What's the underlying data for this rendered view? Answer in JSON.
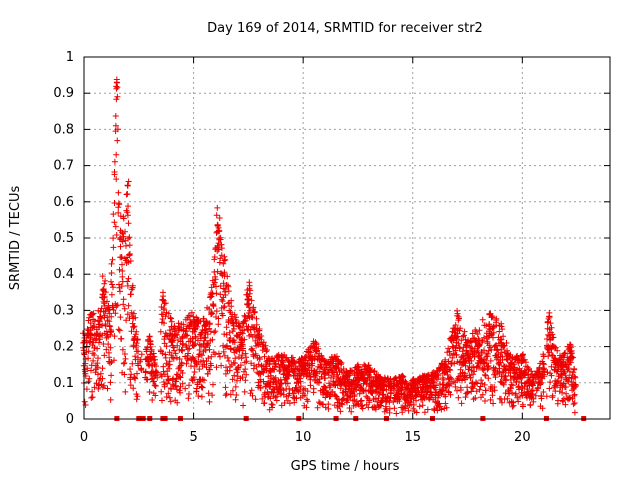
{
  "chart_data": {
    "type": "scatter",
    "title": "Day 169 of 2014, SRMTID for receiver str2",
    "xlabel": "GPS time / hours",
    "ylabel": "SRMTID / TECUs",
    "xlim": [
      0,
      24
    ],
    "ylim": [
      0,
      1
    ],
    "x_ticks": [
      "0",
      "5",
      "10",
      "15",
      "20"
    ],
    "x_tick_values": [
      0,
      5,
      10,
      15,
      20
    ],
    "y_ticks": [
      "0",
      "0.1",
      "0.2",
      "0.3",
      "0.4",
      "0.5",
      "0.6",
      "0.7",
      "0.8",
      "0.9",
      "1"
    ],
    "y_tick_values": [
      0,
      0.1,
      0.2,
      0.3,
      0.4,
      0.5,
      0.6,
      0.7,
      0.8,
      0.9,
      1.0
    ],
    "grid": true,
    "marker": "+",
    "color": "#ee0000",
    "envelope": {
      "description": "approximate upper envelope of the SRMTID scatter (hours, TECU)",
      "points": [
        [
          0.0,
          0.24
        ],
        [
          0.3,
          0.29
        ],
        [
          0.7,
          0.3
        ],
        [
          0.9,
          0.42
        ],
        [
          1.2,
          0.3
        ],
        [
          1.5,
          0.96
        ],
        [
          1.7,
          0.53
        ],
        [
          2.0,
          0.66
        ],
        [
          2.3,
          0.28
        ],
        [
          2.6,
          0.18
        ],
        [
          3.0,
          0.23
        ],
        [
          3.3,
          0.15
        ],
        [
          3.6,
          0.35
        ],
        [
          4.0,
          0.27
        ],
        [
          4.5,
          0.27
        ],
        [
          5.0,
          0.3
        ],
        [
          5.5,
          0.28
        ],
        [
          5.8,
          0.35
        ],
        [
          6.1,
          0.62
        ],
        [
          6.4,
          0.45
        ],
        [
          6.8,
          0.3
        ],
        [
          7.2,
          0.25
        ],
        [
          7.5,
          0.39
        ],
        [
          8.0,
          0.25
        ],
        [
          8.5,
          0.17
        ],
        [
          9.0,
          0.18
        ],
        [
          9.5,
          0.17
        ],
        [
          10.0,
          0.17
        ],
        [
          10.5,
          0.22
        ],
        [
          11.0,
          0.16
        ],
        [
          11.5,
          0.18
        ],
        [
          12.0,
          0.13
        ],
        [
          12.5,
          0.15
        ],
        [
          13.0,
          0.15
        ],
        [
          13.5,
          0.12
        ],
        [
          14.0,
          0.11
        ],
        [
          14.5,
          0.12
        ],
        [
          15.0,
          0.11
        ],
        [
          15.5,
          0.12
        ],
        [
          16.0,
          0.13
        ],
        [
          16.5,
          0.17
        ],
        [
          17.0,
          0.3
        ],
        [
          17.5,
          0.22
        ],
        [
          18.0,
          0.26
        ],
        [
          18.5,
          0.3
        ],
        [
          19.0,
          0.27
        ],
        [
          19.5,
          0.17
        ],
        [
          20.0,
          0.18
        ],
        [
          20.5,
          0.12
        ],
        [
          21.0,
          0.18
        ],
        [
          21.2,
          0.3
        ],
        [
          21.5,
          0.2
        ],
        [
          21.8,
          0.17
        ],
        [
          22.2,
          0.22
        ],
        [
          22.4,
          0.12
        ]
      ]
    },
    "gaps": [
      [
        2.5,
        2.8
      ],
      [
        3.3,
        3.5
      ],
      [
        4.5,
        4.6
      ],
      [
        9.4,
        9.5
      ],
      [
        14.0,
        14.1
      ],
      [
        20.5,
        20.6
      ],
      [
        21.0,
        21.1
      ]
    ],
    "zero_markers": [
      1.5,
      2.5,
      2.7,
      3.0,
      3.6,
      3.7,
      4.4,
      7.4,
      9.8,
      11.5,
      12.4,
      13.8,
      15.9,
      18.2,
      21.1,
      22.8
    ]
  }
}
